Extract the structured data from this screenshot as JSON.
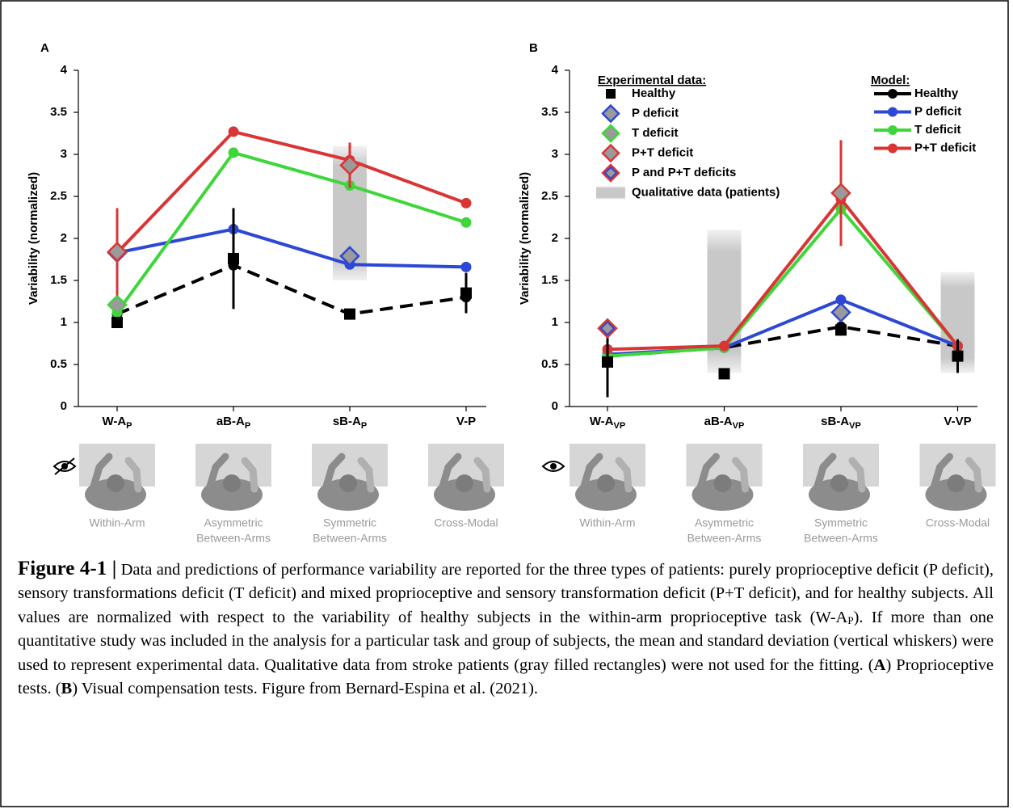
{
  "chart_data": [
    {
      "type": "line",
      "panel_label": "A",
      "y_label": "Variability (normalized)",
      "categories": [
        "W-A",
        "aB-A",
        "sB-A",
        "V-P"
      ],
      "category_subscripts": [
        "P",
        "P",
        "P",
        null
      ],
      "tasks": [
        [
          "Within-Arm"
        ],
        [
          "Asymmetric",
          "Between-Arms"
        ],
        [
          "Symmetric",
          "Between-Arms"
        ],
        [
          "Cross-Modal"
        ]
      ],
      "ylim": [
        0,
        4
      ],
      "yticks": [
        0,
        0.5,
        1,
        1.5,
        2,
        2.5,
        3,
        3.5,
        4
      ],
      "icon": "eye-crossed",
      "model_series": [
        {
          "color": "#000000",
          "dash": true,
          "values": [
            1.1,
            1.68,
            1.1,
            1.3
          ]
        },
        {
          "color": "#2c48d4",
          "values": [
            1.83,
            2.11,
            1.69,
            1.66
          ]
        },
        {
          "color": "#3ed63a",
          "values": [
            1.12,
            3.02,
            2.63,
            2.19
          ]
        },
        {
          "color": "#d93535",
          "values": [
            1.83,
            3.27,
            2.93,
            2.42
          ]
        }
      ],
      "experimental_series": [
        {
          "marker": "square",
          "color": "#000000",
          "values": [
            1.0,
            1.76,
            1.1,
            1.35
          ],
          "errors": [
            null,
            0.6,
            null,
            0.24
          ]
        },
        {
          "marker": "diamond",
          "edge": [
            "#2c48d4"
          ],
          "values": [
            1.83,
            null,
            1.79,
            null
          ]
        },
        {
          "marker": "diamond",
          "edge": [
            "#3ed63a"
          ],
          "values": [
            1.21,
            null,
            null,
            null
          ]
        },
        {
          "marker": "diamond",
          "edge": [
            "#d93535"
          ],
          "values": [
            1.84,
            null,
            2.87,
            null
          ],
          "errors": [
            0.52,
            null,
            0.27,
            null
          ]
        }
      ],
      "qualitative": {
        "low": [
          null,
          null,
          1.5,
          null
        ],
        "high": [
          null,
          null,
          3.1,
          null
        ]
      }
    },
    {
      "type": "line",
      "panel_label": "B",
      "y_label": "Variability (normalized)",
      "categories": [
        "W-A",
        "aB-A",
        "sB-A",
        "V-VP"
      ],
      "category_subscripts": [
        "VP",
        "VP",
        "VP",
        null
      ],
      "tasks": [
        [
          "Within-Arm"
        ],
        [
          "Asymmetric",
          "Between-Arms"
        ],
        [
          "Symmetric",
          "Between-Arms"
        ],
        [
          "Cross-Modal"
        ]
      ],
      "ylim": [
        0,
        4
      ],
      "yticks": [
        0,
        0.5,
        1,
        1.5,
        2,
        2.5,
        3,
        3.5,
        4
      ],
      "icon": "eye",
      "experimental_title": "Experimental data:",
      "model_title": "Model:",
      "model_series": [
        {
          "name": "Healthy",
          "color": "#000000",
          "dash": true,
          "values": [
            0.6,
            0.7,
            0.95,
            0.72
          ]
        },
        {
          "name": "P deficit",
          "color": "#2c48d4",
          "values": [
            0.62,
            0.7,
            1.27,
            0.72
          ]
        },
        {
          "name": "T deficit",
          "color": "#3ed63a",
          "values": [
            0.6,
            0.7,
            2.35,
            0.72
          ]
        },
        {
          "name": "P+T deficit",
          "color": "#d93535",
          "values": [
            0.68,
            0.72,
            2.47,
            0.72
          ]
        }
      ],
      "experimental_series": [
        {
          "name": "Healthy",
          "marker": "square",
          "color": "#000000",
          "values": [
            0.53,
            0.39,
            0.91,
            0.6
          ],
          "errors": [
            0.42,
            null,
            null,
            0.2
          ]
        },
        {
          "name": "P deficit",
          "marker": "diamond",
          "edge": [
            "#2c48d4"
          ],
          "values": [
            null,
            null,
            1.12,
            null
          ]
        },
        {
          "name": "T deficit",
          "marker": "diamond",
          "edge": [
            "#3ed63a"
          ],
          "values": [
            null,
            null,
            null,
            null
          ]
        },
        {
          "name": "P+T deficit",
          "marker": "diamond",
          "edge": [
            "#d93535"
          ],
          "values": [
            null,
            null,
            2.54,
            null
          ],
          "errors": [
            null,
            null,
            0.63,
            null
          ]
        },
        {
          "name": "P and P+T deficits",
          "marker": "diamond",
          "edge": [
            "#d93535",
            "#2c48d4"
          ],
          "values": [
            0.93,
            null,
            null,
            null
          ]
        }
      ],
      "qualitative": {
        "name": "Qualitative data (patients)",
        "low": [
          null,
          0.4,
          null,
          0.4
        ],
        "high": [
          null,
          2.1,
          null,
          1.6
        ]
      }
    }
  ],
  "caption": [
    {
      "text": "Figure 4-1 |",
      "bold": true,
      "big": true
    },
    {
      "text": " Data and predictions of performance variability are reported for the three types of patients: purely proprioceptive deficit (P deficit), sensory transformations deficit (T deficit) and mixed proprioceptive and sensory transformation deficit (P+T deficit), and for healthy subjects. All values are normalized with respect to the variability of healthy subjects in the within-arm proprioceptive task (W-A"
    },
    {
      "text": "P",
      "sub": true
    },
    {
      "text": "). If more than one quantitative study was included in the analysis for a particular task and group of subjects, the mean and standard deviation (vertical whiskers) were used to represent experimental data. Qualitative data from stroke patients (gray filled rectangles) were not used for the fitting. ("
    },
    {
      "text": "A",
      "bold": true
    },
    {
      "text": ") Proprioceptive tests. ("
    },
    {
      "text": "B",
      "bold": true
    },
    {
      "text": ") Visual compensation tests. Figure from Bernard-Espina et al. (2021)."
    }
  ]
}
